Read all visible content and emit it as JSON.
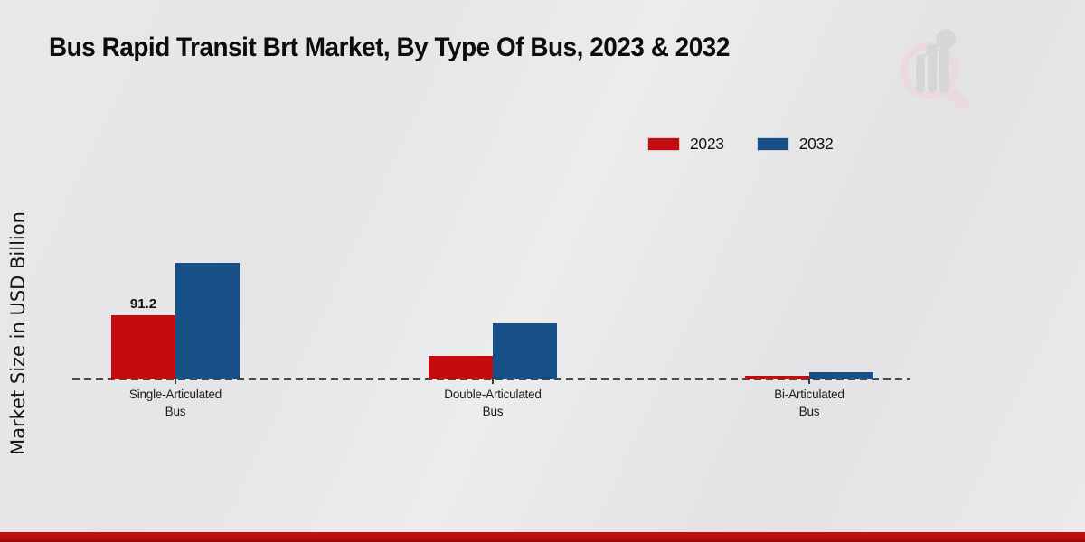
{
  "chart_data": {
    "type": "bar",
    "title": "Bus Rapid Transit Brt Market, By Type Of Bus, 2023 & 2032",
    "ylabel": "Market Size in USD Billion",
    "xlabel": "",
    "categories": [
      "Single-Articulated Bus",
      "Double-Articulated Bus",
      "Bi-Articulated Bus"
    ],
    "series": [
      {
        "name": "2023",
        "color": "#c40b0e",
        "values": [
          91.2,
          34,
          4.5
        ]
      },
      {
        "name": "2032",
        "color": "#174f87",
        "values": [
          166,
          79,
          10
        ]
      }
    ],
    "data_labels": [
      {
        "series": "2023",
        "category": "Single-Articulated Bus",
        "text": "91.2"
      }
    ],
    "ylim": [
      0,
      180
    ],
    "grid": false,
    "baseline_style": "dashed",
    "legend_position": "top-right"
  },
  "legend": {
    "items": [
      {
        "label": "2023",
        "color": "#c40b0e"
      },
      {
        "label": "2032",
        "color": "#174f87"
      }
    ]
  },
  "colors": {
    "series_2023": "#c40b0e",
    "series_2032": "#174f87",
    "footer_bar": "#bd0d0f",
    "axis_line": "#4a4a4a",
    "text": "#111111",
    "background": "#e8e8ea"
  },
  "branding": {
    "watermark": "magnifier-bar-chart-logo"
  }
}
